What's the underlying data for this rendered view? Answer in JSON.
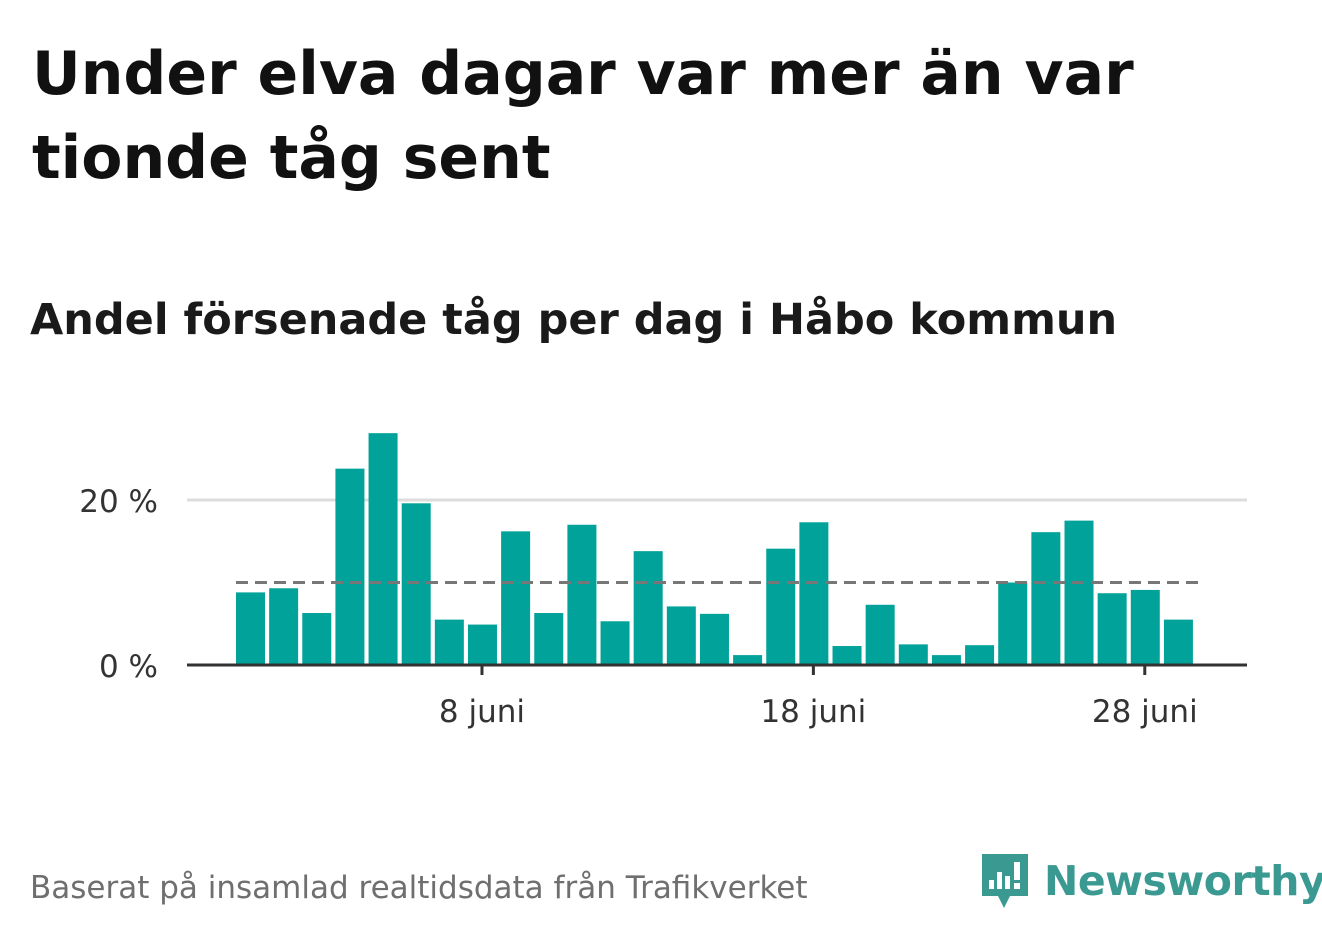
{
  "title": "Under elva dagar var mer än var tionde tåg sent",
  "subtitle": "Andel försenade tåg per dag i Håbo kommun",
  "source": "Baserat på insamlad realtidsdata från Trafikverket",
  "brand": {
    "name": "Newsworthy",
    "color": "#3a9a92",
    "icon": "newsworthy-bars-icon"
  },
  "colors": {
    "bar": "#00a29a",
    "reference_line": "#777777",
    "grid": "#dddddd",
    "axis": "#333333"
  },
  "chart_data": {
    "type": "bar",
    "x": [
      "2024-06-01",
      "2024-06-02",
      "2024-06-03",
      "2024-06-04",
      "2024-06-05",
      "2024-06-06",
      "2024-06-07",
      "2024-06-08",
      "2024-06-09",
      "2024-06-10",
      "2024-06-11",
      "2024-06-12",
      "2024-06-13",
      "2024-06-14",
      "2024-06-15",
      "2024-06-16",
      "2024-06-17",
      "2024-06-18",
      "2024-06-19",
      "2024-06-20",
      "2024-06-21",
      "2024-06-22",
      "2024-06-23",
      "2024-06-24",
      "2024-06-25",
      "2024-06-26",
      "2024-06-27",
      "2024-06-28",
      "2024-06-29"
    ],
    "values": [
      8.8,
      9.3,
      6.3,
      23.8,
      28.1,
      19.6,
      5.5,
      4.9,
      16.2,
      6.3,
      17.0,
      5.3,
      13.8,
      7.1,
      6.2,
      1.2,
      14.1,
      17.3,
      2.3,
      7.3,
      2.5,
      1.2,
      2.4,
      10.0,
      16.1,
      17.5,
      8.7,
      9.1,
      5.5
    ],
    "reference_line": 10,
    "ylim": [
      0,
      30
    ],
    "yticks": [
      0,
      20
    ],
    "ytick_labels": [
      "0 %",
      "20 %"
    ],
    "xtick_dates": [
      "2024-06-08",
      "2024-06-18",
      "2024-06-28"
    ],
    "xtick_labels": [
      "8 juni",
      "18 juni",
      "28 juni"
    ],
    "grid": true,
    "legend": "none"
  }
}
